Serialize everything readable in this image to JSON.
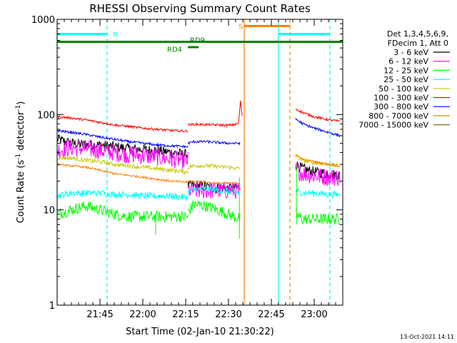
{
  "chart_data": {
    "type": "line",
    "title": "RHESSI Observing Summary Count Rates",
    "xlabel": "Start Time (02-Jan-10 21:30:22)",
    "ylabel_prefix": "Count Rate (s",
    "ylabel_sup1": "-1",
    "ylabel_mid": " detector",
    "ylabel_sup2": "-1",
    "ylabel_suffix": ")",
    "x_unit": "minutes since 21:30",
    "xlim": [
      0,
      100
    ],
    "ylim": [
      1,
      1000
    ],
    "yscale": "log",
    "x_ticks": [
      {
        "x": 15,
        "label": "21:45"
      },
      {
        "x": 30,
        "label": "22:00"
      },
      {
        "x": 45,
        "label": "22:15"
      },
      {
        "x": 60,
        "label": "22:30"
      },
      {
        "x": 75,
        "label": "22:45"
      },
      {
        "x": 90,
        "label": "23:00"
      }
    ],
    "x_minor_step": 2.5,
    "y_ticks": [
      {
        "y": 1,
        "label": "1"
      },
      {
        "y": 10,
        "label": "10"
      },
      {
        "y": 100,
        "label": "100"
      },
      {
        "y": 1000,
        "label": "1000"
      }
    ],
    "legend_header": [
      "Det 1,3,4,5,6,9,",
      "FDecim 1, Att 0"
    ],
    "legend_position": "right",
    "footer_date": "13-Oct-2021 14:11",
    "series": [
      {
        "name": "3 - 6 keV",
        "color": "#000000",
        "noise": 0.13,
        "segments": [
          {
            "x": [
              0,
              5,
              10,
              15,
              20,
              25,
              30,
              35,
              40,
              45,
              45.8
            ],
            "y": [
              55,
              50,
              48,
              48,
              46,
              44,
              43,
              42,
              40,
              38,
              38
            ]
          },
          {
            "x": [
              45.8,
              50,
              55,
              60,
              64
            ],
            "y": [
              18,
              18,
              17,
              17,
              17
            ]
          },
          {
            "x": [
              83.5,
              86,
              90,
              95,
              99
            ],
            "y": [
              30,
              27,
              25,
              24,
              23
            ]
          }
        ]
      },
      {
        "name": "6 - 12 keV",
        "color": "#ff00ff",
        "noise": 0.22,
        "segments": [
          {
            "x": [
              0,
              5,
              10,
              15,
              20,
              25,
              30,
              35,
              40,
              45,
              45.8
            ],
            "y": [
              42,
              45,
              44,
              42,
              40,
              38,
              37,
              36,
              34,
              33,
              33
            ]
          },
          {
            "x": [
              45.8,
              50,
              55,
              60,
              64
            ],
            "y": [
              16,
              16,
              16,
              16,
              16
            ]
          },
          {
            "x": [
              83.5,
              86,
              90,
              95,
              99
            ],
            "y": [
              27,
              24,
              23,
              22,
              22
            ]
          }
        ]
      },
      {
        "name": "12 - 25 keV",
        "color": "#00ff00",
        "noise": 0.14,
        "segments": [
          {
            "x": [
              0,
              5,
              10,
              15,
              20,
              25,
              30,
              35,
              40,
              45,
              45.8
            ],
            "y": [
              9,
              10,
              11,
              10,
              9,
              8.5,
              8.5,
              8.5,
              8.5,
              8.5,
              8.5
            ]
          },
          {
            "x": [
              45.8,
              48,
              52,
              56,
              60,
              64
            ],
            "y": [
              9.5,
              11.5,
              11,
              10,
              9,
              8
            ]
          },
          {
            "x": [
              83.5,
              86,
              90,
              95,
              99
            ],
            "y": [
              9,
              8,
              8,
              8,
              8
            ]
          }
        ]
      },
      {
        "name": "25 - 50 keV",
        "color": "#00ffff",
        "noise": 0.08,
        "segments": [
          {
            "x": [
              0,
              5,
              10,
              15,
              20,
              25,
              30,
              35,
              40,
              45,
              45.8
            ],
            "y": [
              14,
              15,
              15,
              15,
              14.5,
              14.5,
              14,
              14,
              14,
              13.5,
              13.5
            ]
          },
          {
            "x": [
              45.8,
              48,
              52,
              56,
              60,
              64
            ],
            "y": [
              15.5,
              16.5,
              16.5,
              16,
              15.5,
              15
            ]
          },
          {
            "x": [
              83.5,
              86,
              90,
              95,
              99
            ],
            "y": [
              16,
              15,
              15,
              14.5,
              14.5
            ]
          }
        ]
      },
      {
        "name": "50 - 100 keV",
        "color": "#c8c800",
        "noise": 0.05,
        "segments": [
          {
            "x": [
              0,
              5,
              10,
              15,
              20,
              25,
              30,
              35,
              40,
              45,
              45.8
            ],
            "y": [
              35,
              35,
              33,
              32,
              30,
              29,
              28,
              27,
              26,
              25,
              25
            ]
          },
          {
            "x": [
              45.8,
              48,
              52,
              56,
              60,
              64
            ],
            "y": [
              28,
              29,
              29,
              28.5,
              28,
              27
            ]
          },
          {
            "x": [
              83.5,
              86,
              90,
              95,
              99
            ],
            "y": [
              37,
              33,
              31,
              30,
              29
            ]
          }
        ]
      },
      {
        "name": "100 - 300 keV",
        "color": "#ff0000",
        "noise": 0.03,
        "segments": [
          {
            "x": [
              0,
              5,
              10,
              15,
              20,
              25,
              30,
              35,
              40,
              45,
              45.8
            ],
            "y": [
              95,
              92,
              88,
              83,
              78,
              75,
              72,
              70,
              68,
              67,
              67
            ]
          },
          {
            "x": [
              45.8,
              48,
              52,
              56,
              60,
              63.5,
              64.2,
              64.8
            ],
            "y": [
              78,
              79,
              78.5,
              78,
              77,
              80,
              140,
              95
            ]
          },
          {
            "x": [
              83.5,
              86,
              90,
              95,
              99
            ],
            "y": [
              115,
              105,
              95,
              88,
              85
            ]
          }
        ]
      },
      {
        "name": "300 - 800 keV",
        "color": "#0000ff",
        "noise": 0.03,
        "segments": [
          {
            "x": [
              0,
              5,
              10,
              15,
              20,
              25,
              30,
              35,
              40,
              45,
              45.8
            ],
            "y": [
              68,
              65,
              62,
              58,
              55,
              52,
              50,
              48,
              47,
              46,
              46
            ]
          },
          {
            "x": [
              45.8,
              48,
              52,
              56,
              60,
              64
            ],
            "y": [
              50,
              52,
              52,
              51,
              50,
              50
            ]
          },
          {
            "x": [
              83.5,
              86,
              90,
              95,
              99
            ],
            "y": [
              90,
              80,
              72,
              65,
              60
            ]
          }
        ]
      },
      {
        "name": "800 - 7000 keV",
        "color": "#ff8000",
        "noise": 0.025,
        "segments": [
          {
            "x": [
              0,
              5,
              10,
              15,
              20,
              25,
              30,
              35,
              40,
              45,
              45.8
            ],
            "y": [
              30,
              29,
              28,
              26,
              24,
              23,
              22,
              21,
              20,
              19.5,
              19.5
            ]
          },
          {
            "x": [
              45.8,
              48,
              52,
              56,
              60,
              64
            ],
            "y": [
              20,
              20,
              19.5,
              19,
              19,
              19
            ]
          },
          {
            "x": [
              83.5,
              86,
              90,
              95,
              99
            ],
            "y": [
              38,
              34,
              32,
              30,
              29
            ]
          }
        ]
      },
      {
        "name": "7000 - 15000 keV",
        "color": "#8b6914",
        "noise": 0.0,
        "segments": []
      }
    ],
    "spikes": [
      {
        "x": 63.8,
        "y_from": 22,
        "y_to": 5,
        "color": "#00ff00"
      },
      {
        "x": 83.8,
        "y_from": 30,
        "y_to": 7,
        "color": "#00ff00"
      },
      {
        "x": 34.5,
        "y_from": 9,
        "y_to": 5.5,
        "color": "#00ff00"
      }
    ],
    "annotations": [
      {
        "kind": "vline",
        "x": 0,
        "color": "#00ffff",
        "dashed": false
      },
      {
        "kind": "vline",
        "x": 17.5,
        "color": "#00ffff",
        "dashed": true
      },
      {
        "kind": "vline",
        "x": 77.5,
        "color": "#00ffff",
        "dashed": false
      },
      {
        "kind": "vline",
        "x": 95.5,
        "color": "#00ffff",
        "dashed": true
      },
      {
        "kind": "vline",
        "x": 65.5,
        "color": "#ff8000",
        "dashed": false
      },
      {
        "kind": "vline",
        "x": 81.5,
        "color": "#ff8000",
        "dashed": true
      },
      {
        "kind": "bar",
        "x1": 0,
        "x2": 17.5,
        "y": 700,
        "color": "#00ffff",
        "label": "N",
        "label_x": 19.5
      },
      {
        "kind": "bar",
        "x1": 77.5,
        "x2": 95.5,
        "y": 700,
        "color": "#00ffff",
        "label": "",
        "label_x": 0
      },
      {
        "kind": "bar",
        "x1": 65.5,
        "x2": 81.5,
        "y": 850,
        "color": "#ff8000",
        "label": "S",
        "label_x": 63.5
      },
      {
        "kind": "bar",
        "x1": 0,
        "x2": 100,
        "y": 580,
        "color": "#008000",
        "label": "",
        "label_x": 0
      },
      {
        "kind": "bar",
        "x1": 45.8,
        "x2": 49.5,
        "y": 510,
        "color": "#008000",
        "label": "",
        "label_x": 0
      }
    ],
    "tags": [
      {
        "text": "RD9",
        "x": 46.5,
        "y": 600,
        "color": "#008000"
      },
      {
        "text": "RD4",
        "x": 38.5,
        "y": 480,
        "color": "#008000"
      }
    ]
  }
}
